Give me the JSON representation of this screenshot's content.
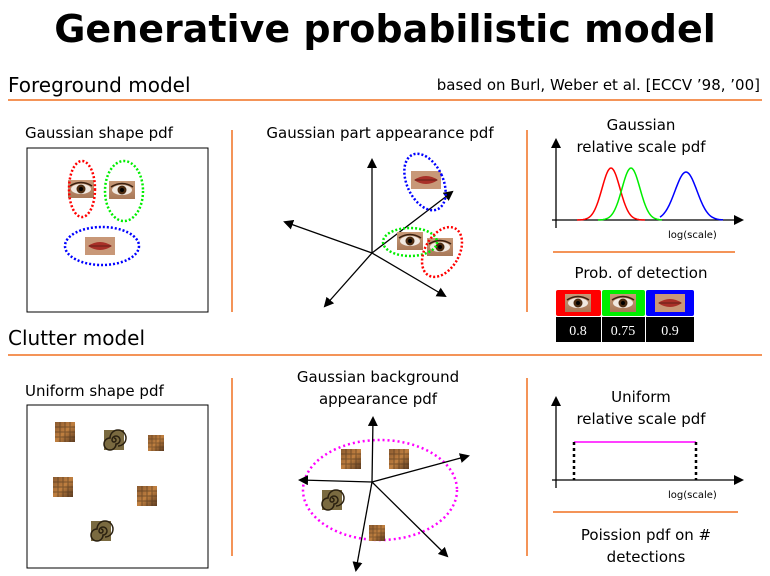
{
  "title": "Generative probabilistic model",
  "foreground": {
    "heading": "Foreground model",
    "citation": "based on Burl, Weber et al. [ECCV ’98, ’00]",
    "shape_label": "Gaussian shape pdf",
    "appearance_label": "Gaussian part appearance pdf",
    "scale_label_1": "Gaussian",
    "scale_label_2": "relative scale pdf",
    "scale_axis": "log(scale)",
    "detection_label": "Prob. of detection",
    "detections": [
      {
        "part": "eye",
        "color": "#ff0000",
        "prob": "0.8"
      },
      {
        "part": "eye",
        "color": "#00ee00",
        "prob": "0.75"
      },
      {
        "part": "lips",
        "color": "#0000ff",
        "prob": "0.9"
      }
    ]
  },
  "clutter": {
    "heading": "Clutter model",
    "shape_label": "Uniform shape pdf",
    "appearance_label_1": "Gaussian background",
    "appearance_label_2": "appearance pdf",
    "scale_label_1": "Uniform",
    "scale_label_2": "relative scale pdf",
    "scale_axis": "log(scale)",
    "poisson_label_1": "Poission pdf on #",
    "poisson_label_2": "detections",
    "uniform_color": "#ff00ff"
  },
  "colors": {
    "divider": "#f07020",
    "part1": "#ff0000",
    "part2": "#00ee00",
    "part3": "#0000ff"
  }
}
